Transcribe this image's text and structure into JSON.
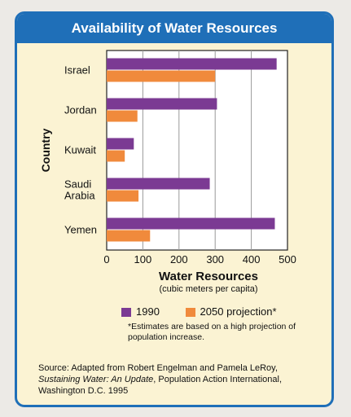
{
  "title": "Availability of Water Resources",
  "chart_data": {
    "type": "bar",
    "orientation": "horizontal",
    "categories": [
      "Israel",
      "Jordan",
      "Kuwait",
      "Saudi Arabia",
      "Yemen"
    ],
    "series": [
      {
        "name": "1990",
        "color": "#7b3a93",
        "values": [
          470,
          305,
          75,
          285,
          465
        ]
      },
      {
        "name": "2050 projection*",
        "color": "#f08a3c",
        "values": [
          300,
          85,
          50,
          88,
          120
        ]
      }
    ],
    "xlim": [
      0,
      500
    ],
    "xticks": [
      0,
      100,
      200,
      300,
      400,
      500
    ],
    "xlabel": "Water Resources",
    "xlabel_sub": "(cubic meters per capita)",
    "ylabel": "Country",
    "grid": "vertical",
    "legend_position": "bottom"
  },
  "legend": {
    "items": [
      {
        "label": "1990",
        "color": "#7b3a93"
      },
      {
        "label": "2050 projection*",
        "color": "#f08a3c"
      }
    ]
  },
  "note": "*Estimates are based on a high projection of population increase.",
  "source": {
    "prefix": "Source: Adapted from Robert Engelman and Pamela LeRoy, ",
    "italic": "Sustaining Water: An Update",
    "suffix": ", Population Action International, Washington D.C. 1995"
  }
}
